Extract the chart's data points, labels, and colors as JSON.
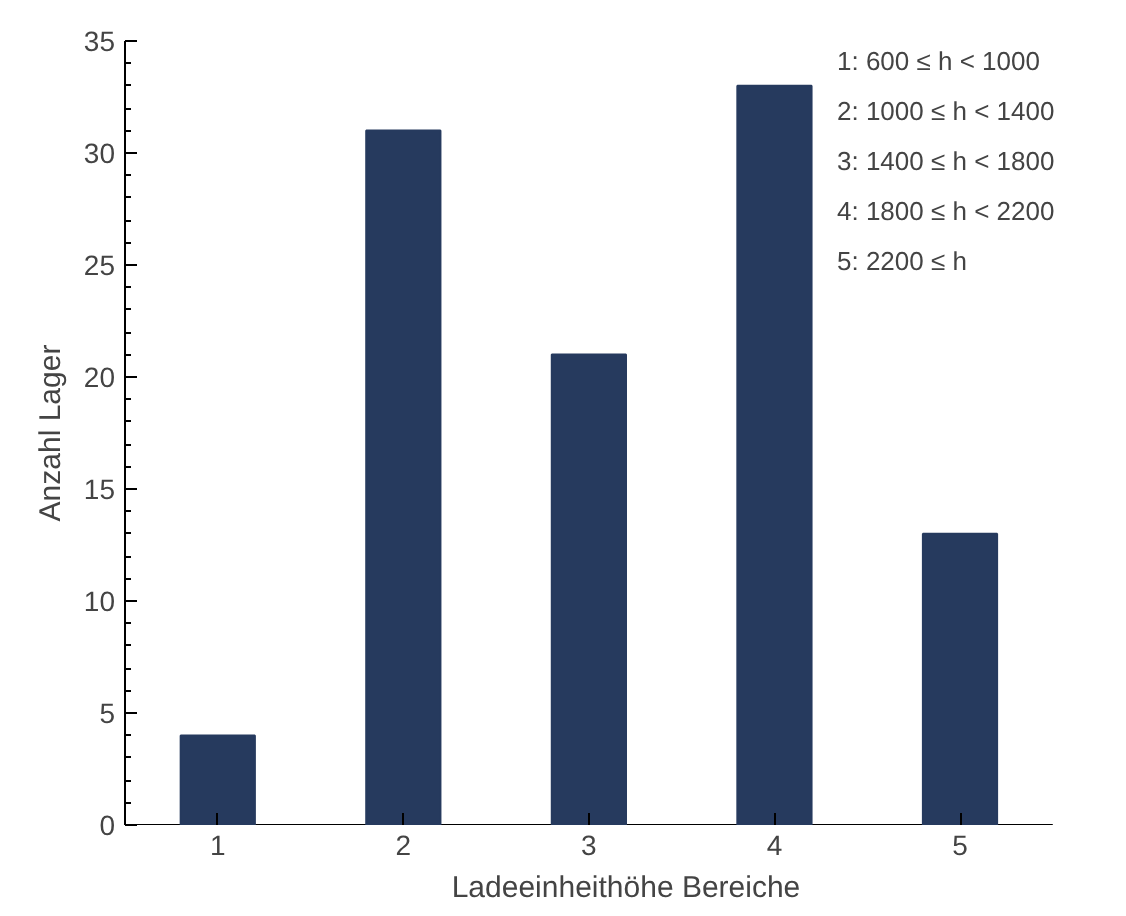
{
  "chart_data": {
    "type": "bar",
    "xlabel": "Ladeeinheithöhe Bereiche",
    "ylabel": "Anzahl Lager",
    "categories": [
      "1",
      "2",
      "3",
      "4",
      "5"
    ],
    "values": [
      4,
      31,
      21,
      33,
      13
    ],
    "color": "#263a5e",
    "ylim": [
      0,
      35
    ],
    "yticks": [
      0,
      5,
      10,
      15,
      20,
      25,
      30,
      35
    ],
    "grid": false,
    "annotations": [
      "1: 600   ≤ h < 1000",
      "2: 1000 ≤ h < 1400",
      "3: 1400 ≤ h < 1800",
      "4: 1800 ≤ h < 2200",
      "5: 2200 ≤ h"
    ]
  }
}
